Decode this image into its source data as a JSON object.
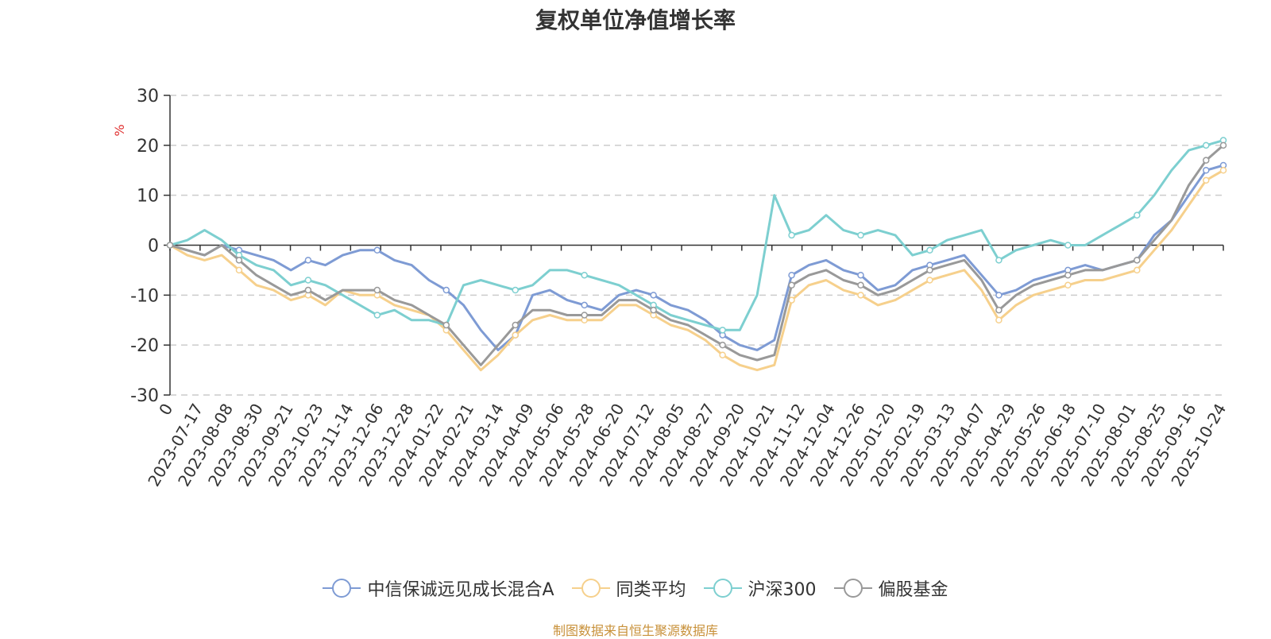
{
  "chart_data": {
    "type": "line",
    "title": "复权单位净值增长率",
    "ylabel": "%",
    "ylim": [
      -30,
      30
    ],
    "yticks": [
      -30,
      -20,
      -10,
      0,
      10,
      20,
      30
    ],
    "grid": true,
    "legend_position": "bottom",
    "x_labels": [
      "0",
      "2023-07-17",
      "2023-08-08",
      "2023-08-30",
      "2023-09-21",
      "2023-10-23",
      "2023-11-14",
      "2023-12-06",
      "2023-12-28",
      "2024-01-22",
      "2024-02-21",
      "2024-03-14",
      "2024-04-09",
      "2024-05-06",
      "2024-05-28",
      "2024-06-20",
      "2024-07-12",
      "2024-08-05",
      "2024-08-27",
      "2024-09-20",
      "2024-10-21",
      "2024-11-12",
      "2024-12-04",
      "2024-12-26",
      "2025-01-20",
      "2025-02-19",
      "2025-03-13",
      "2025-04-07",
      "2025-04-29",
      "2025-05-26",
      "2025-06-18",
      "2025-07-10",
      "2025-08-01",
      "2025-08-25",
      "2025-09-16",
      "2025-10-24"
    ],
    "series": [
      {
        "name": "中信保诚远见成长混合A",
        "color": "#7e9bd4",
        "values": [
          0,
          -1,
          -2,
          0,
          -1,
          -2,
          -3,
          -5,
          -3,
          -4,
          -2,
          -1,
          -1,
          -3,
          -4,
          -7,
          -9,
          -12,
          -17,
          -21,
          -18,
          -10,
          -9,
          -11,
          -12,
          -13,
          -10,
          -9,
          -10,
          -12,
          -13,
          -15,
          -18,
          -20,
          -21,
          -19,
          -6,
          -4,
          -3,
          -5,
          -6,
          -9,
          -8,
          -5,
          -4,
          -3,
          -2,
          -6,
          -10,
          -9,
          -7,
          -6,
          -5,
          -4,
          -5,
          -4,
          -3,
          2,
          5,
          10,
          15,
          16
        ]
      },
      {
        "name": "同类平均",
        "color": "#f6d08c",
        "values": [
          0,
          -2,
          -3,
          -2,
          -5,
          -8,
          -9,
          -11,
          -10,
          -12,
          -9,
          -10,
          -10,
          -12,
          -13,
          -14,
          -17,
          -21,
          -25,
          -22,
          -18,
          -15,
          -14,
          -15,
          -15,
          -15,
          -12,
          -12,
          -14,
          -16,
          -17,
          -19,
          -22,
          -24,
          -25,
          -24,
          -11,
          -8,
          -7,
          -9,
          -10,
          -12,
          -11,
          -9,
          -7,
          -6,
          -5,
          -9,
          -15,
          -12,
          -10,
          -9,
          -8,
          -7,
          -7,
          -6,
          -5,
          -1,
          3,
          8,
          13,
          15
        ]
      },
      {
        "name": "沪深300",
        "color": "#7dcfd0",
        "values": [
          0,
          1,
          3,
          1,
          -2,
          -4,
          -5,
          -8,
          -7,
          -8,
          -10,
          -12,
          -14,
          -13,
          -15,
          -15,
          -16,
          -8,
          -7,
          -8,
          -9,
          -8,
          -5,
          -5,
          -6,
          -7,
          -8,
          -10,
          -12,
          -14,
          -15,
          -16,
          -17,
          -17,
          -10,
          10,
          2,
          3,
          6,
          3,
          2,
          3,
          2,
          -2,
          -1,
          1,
          2,
          3,
          -3,
          -1,
          0,
          1,
          0,
          0,
          2,
          4,
          6,
          10,
          15,
          19,
          20,
          21
        ]
      },
      {
        "name": "偏股基金",
        "color": "#999999",
        "values": [
          0,
          -1,
          -2,
          0,
          -3,
          -6,
          -8,
          -10,
          -9,
          -11,
          -9,
          -9,
          -9,
          -11,
          -12,
          -14,
          -16,
          -20,
          -24,
          -20,
          -16,
          -13,
          -13,
          -14,
          -14,
          -14,
          -11,
          -11,
          -13,
          -15,
          -16,
          -18,
          -20,
          -22,
          -23,
          -22,
          -8,
          -6,
          -5,
          -7,
          -8,
          -10,
          -9,
          -7,
          -5,
          -4,
          -3,
          -7,
          -13,
          -10,
          -8,
          -7,
          -6,
          -5,
          -5,
          -4,
          -3,
          1,
          5,
          12,
          17,
          20
        ]
      }
    ],
    "source": "制图数据来自恒生聚源数据库"
  }
}
